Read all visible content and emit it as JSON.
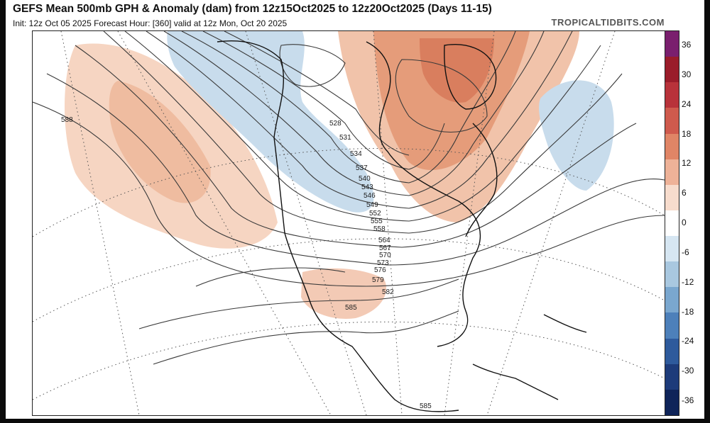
{
  "header": {
    "title": "GEFS Mean 500mb GPH & Anomaly (dam) from 12z15Oct2025 to 12z20Oct2025 (Days 11-15)",
    "subtitle": "Init: 12z Oct 05 2025   Forecast Hour: [360]   valid at 12z Mon, Oct 20 2025",
    "brand": "TROPICALTIDBITS.COM"
  },
  "colorbar": {
    "ticks": [
      "36",
      "30",
      "24",
      "18",
      "12",
      "6",
      "0",
      "-6",
      "-12",
      "-18",
      "-24",
      "-30",
      "-36"
    ],
    "colors": [
      "#7a1f6e",
      "#9a1c2a",
      "#b8323a",
      "#cf5a4d",
      "#e08566",
      "#eeb298",
      "#f7dccd",
      "#ffffff",
      "#d6e6f2",
      "#a9c8e0",
      "#7aa7cf",
      "#4d80ba",
      "#2e5a9c",
      "#1d3b7a",
      "#0f2459"
    ]
  },
  "contours": {
    "labels": [
      "588",
      "528",
      "531",
      "534",
      "537",
      "540",
      "543",
      "546",
      "549",
      "552",
      "555",
      "558",
      "564",
      "567",
      "570",
      "573",
      "576",
      "579",
      "582",
      "585",
      "585"
    ]
  }
}
